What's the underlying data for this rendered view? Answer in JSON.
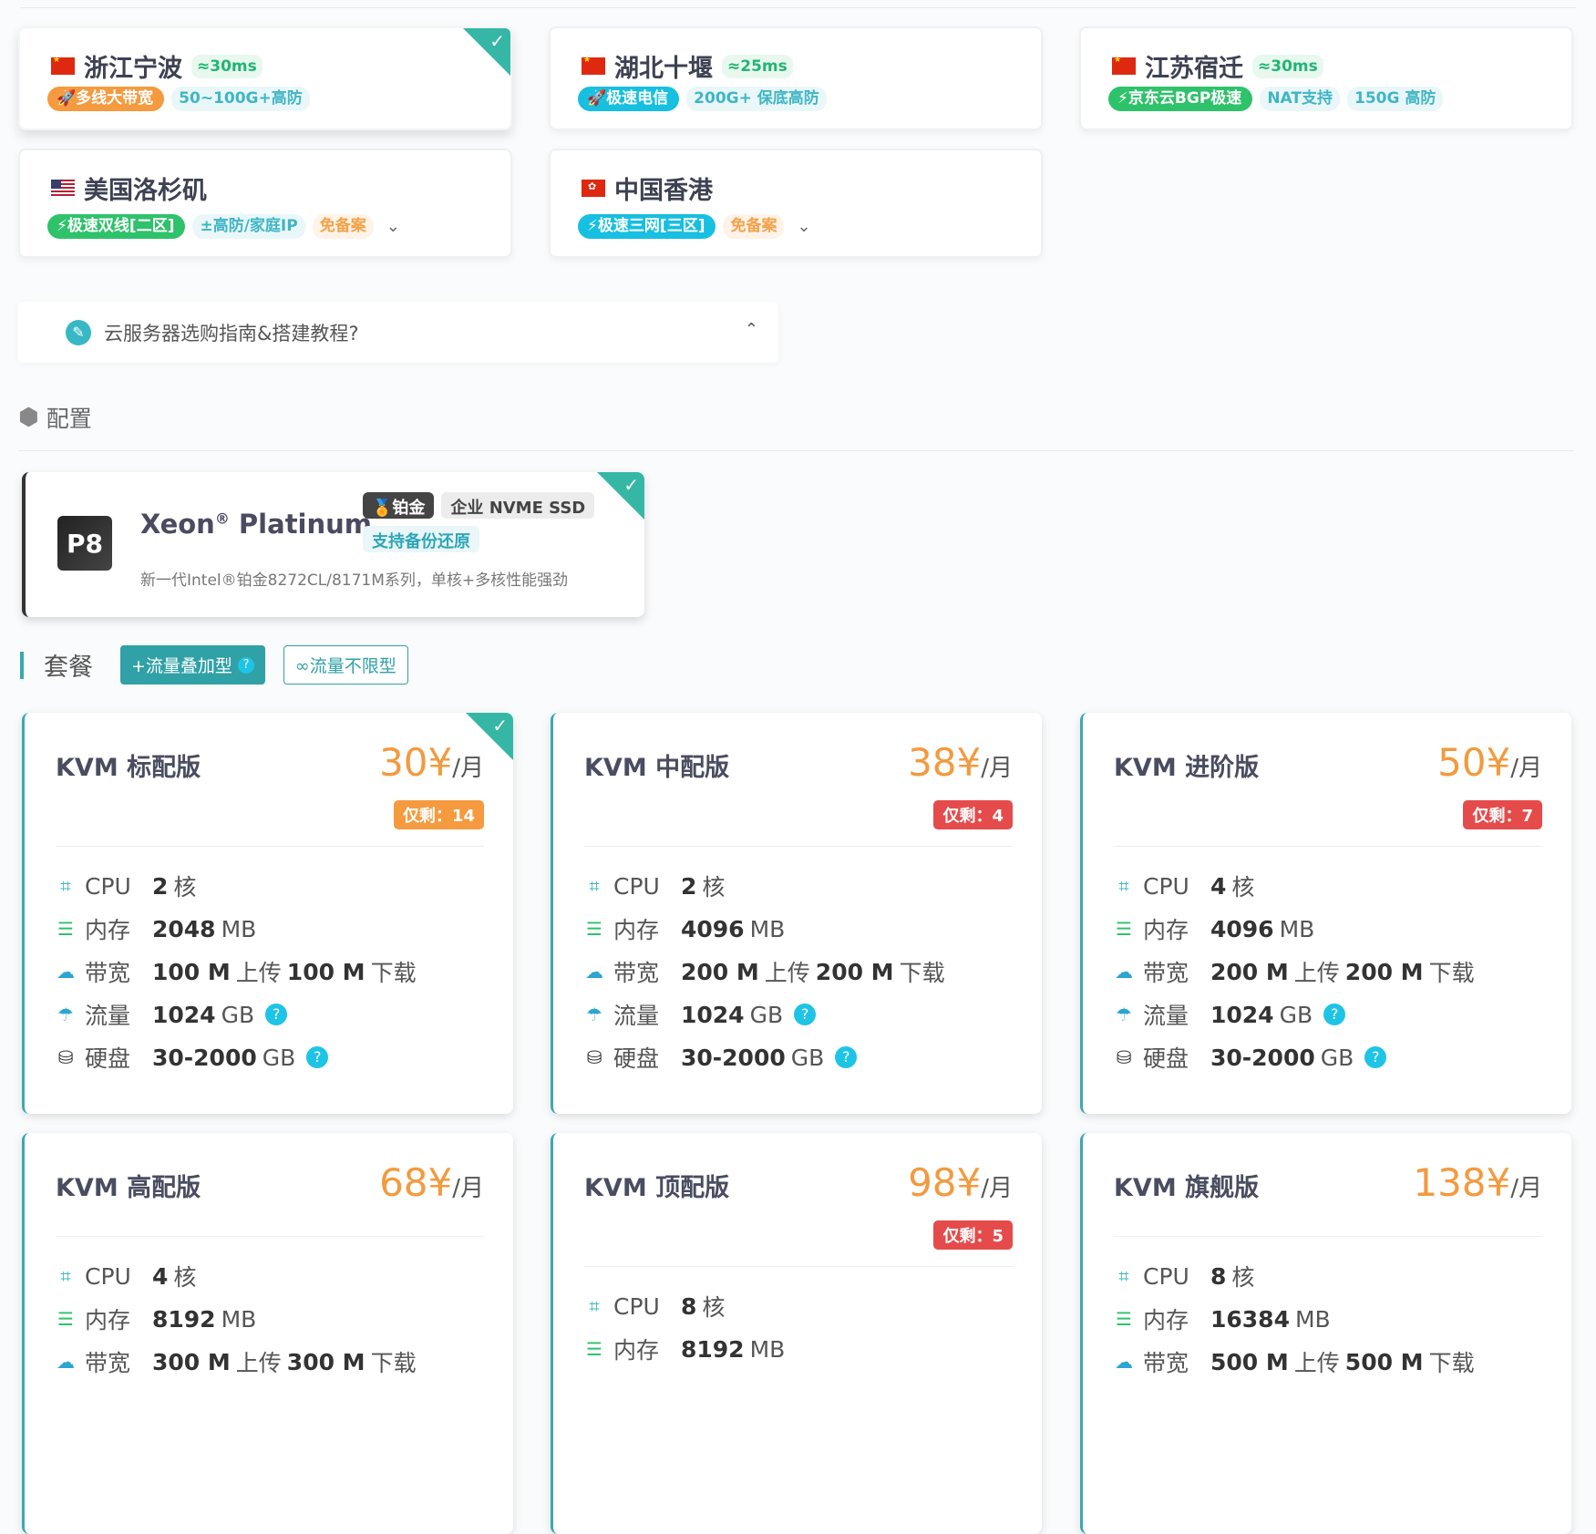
{
  "regions": [
    {
      "flag": "cn",
      "name": "浙江宁波",
      "latency": "≈30ms",
      "selected": true,
      "pills": [
        {
          "text": "🚀多线大带宽",
          "color": "#f59a3e"
        }
      ],
      "tags": [
        {
          "text": "50~100G+高防",
          "style": "cyan"
        }
      ]
    },
    {
      "flag": "cn",
      "name": "湖北十堰",
      "latency": "≈25ms",
      "pills": [
        {
          "text": "🚀极速电信",
          "color": "#17bfe0"
        }
      ],
      "tags": [
        {
          "text": "200G+ 保底高防",
          "style": "cyan"
        }
      ]
    },
    {
      "flag": "cn",
      "name": "江苏宿迁",
      "latency": "≈30ms",
      "pills": [
        {
          "text": "⚡京东云BGP极速",
          "color": "#2ec26a"
        }
      ],
      "tags": [
        {
          "text": "NAT支持",
          "style": "cyan"
        },
        {
          "text": "150G 高防",
          "style": "cyan"
        }
      ]
    },
    {
      "flag": "us",
      "name": "美国洛杉矶",
      "latency": "",
      "pills": [
        {
          "text": "⚡极速双线[二区]",
          "color": "#2ec26a"
        }
      ],
      "tags": [
        {
          "text": "±高防/家庭IP",
          "style": "cyan"
        },
        {
          "text": "免备案",
          "style": "orange"
        }
      ],
      "expand": "chevron-down"
    },
    {
      "flag": "hk",
      "name": "中国香港",
      "latency": "",
      "pills": [
        {
          "text": "⚡极速三网[三区]",
          "color": "#17bfe0"
        }
      ],
      "tags": [
        {
          "text": "免备案",
          "style": "orange"
        }
      ],
      "expand": "chevron-down"
    }
  ],
  "guide": {
    "icon": "compass",
    "text": "云服务器选购指南&搭建教程?",
    "toggle": "⌃"
  },
  "config_section": {
    "icon": "cubes",
    "title": "配置"
  },
  "cpu": {
    "badge": "P8",
    "title": "Xeon",
    "reg": "®",
    "title2": " Platinum",
    "tags": [
      {
        "text": "🏅铂金",
        "style": "dark"
      },
      {
        "text": "企业 NVME SSD",
        "style": "grey"
      },
      {
        "text": "支持备份还原",
        "style": "cyan"
      }
    ],
    "desc": "新一代Intel®铂金8272CL/8171M系列，单核+多核性能强劲",
    "selected": true
  },
  "package": {
    "label": "套餐",
    "options": [
      {
        "text": "+流量叠加型",
        "active": true,
        "help": "?"
      },
      {
        "text": "∞流量不限型",
        "active": false
      }
    ]
  },
  "spec_labels": {
    "cpu": "CPU",
    "mem": "内存",
    "bw": "带宽",
    "traffic": "流量",
    "disk": "硬盘"
  },
  "colors": {
    "accent": "#2fa1a7",
    "price": "#f39a3e",
    "stock_orange": "#f59a3e",
    "stock_red": "#e54b4b"
  },
  "plans": [
    {
      "name": "KVM 标配版",
      "price": "30¥",
      "per": "/月",
      "stock": "仅剩：14",
      "stock_color": "orange",
      "selected": true,
      "cpu": "2",
      "cpu_unit": "核",
      "mem": "2048",
      "mem_unit": "MB",
      "up": "100 M",
      "up_unit": "上传",
      "down": "100 M",
      "down_unit": "下载",
      "traffic": "1024",
      "traffic_unit": "GB",
      "disk": "30-2000",
      "disk_unit": "GB"
    },
    {
      "name": "KVM 中配版",
      "price": "38¥",
      "per": "/月",
      "stock": "仅剩：4",
      "stock_color": "red",
      "cpu": "2",
      "cpu_unit": "核",
      "mem": "4096",
      "mem_unit": "MB",
      "up": "200 M",
      "up_unit": "上传",
      "down": "200 M",
      "down_unit": "下载",
      "traffic": "1024",
      "traffic_unit": "GB",
      "disk": "30-2000",
      "disk_unit": "GB"
    },
    {
      "name": "KVM 进阶版",
      "price": "50¥",
      "per": "/月",
      "stock": "仅剩：7",
      "stock_color": "red",
      "cpu": "4",
      "cpu_unit": "核",
      "mem": "4096",
      "mem_unit": "MB",
      "up": "200 M",
      "up_unit": "上传",
      "down": "200 M",
      "down_unit": "下载",
      "traffic": "1024",
      "traffic_unit": "GB",
      "disk": "30-2000",
      "disk_unit": "GB"
    },
    {
      "name": "KVM 高配版",
      "price": "68¥",
      "per": "/月",
      "cpu": "4",
      "cpu_unit": "核",
      "mem": "8192",
      "mem_unit": "MB",
      "up": "300 M",
      "up_unit": "上传",
      "down": "300 M",
      "down_unit": "下载"
    },
    {
      "name": "KVM 顶配版",
      "price": "98¥",
      "per": "/月",
      "stock": "仅剩：5",
      "stock_color": "red",
      "cpu": "8",
      "cpu_unit": "核",
      "mem": "8192",
      "mem_unit": "MB"
    },
    {
      "name": "KVM 旗舰版",
      "price": "138¥",
      "per": "/月",
      "cpu": "8",
      "cpu_unit": "核",
      "mem": "16384",
      "mem_unit": "MB",
      "up": "500 M",
      "up_unit": "上传",
      "down": "500 M",
      "down_unit": "下载"
    }
  ]
}
